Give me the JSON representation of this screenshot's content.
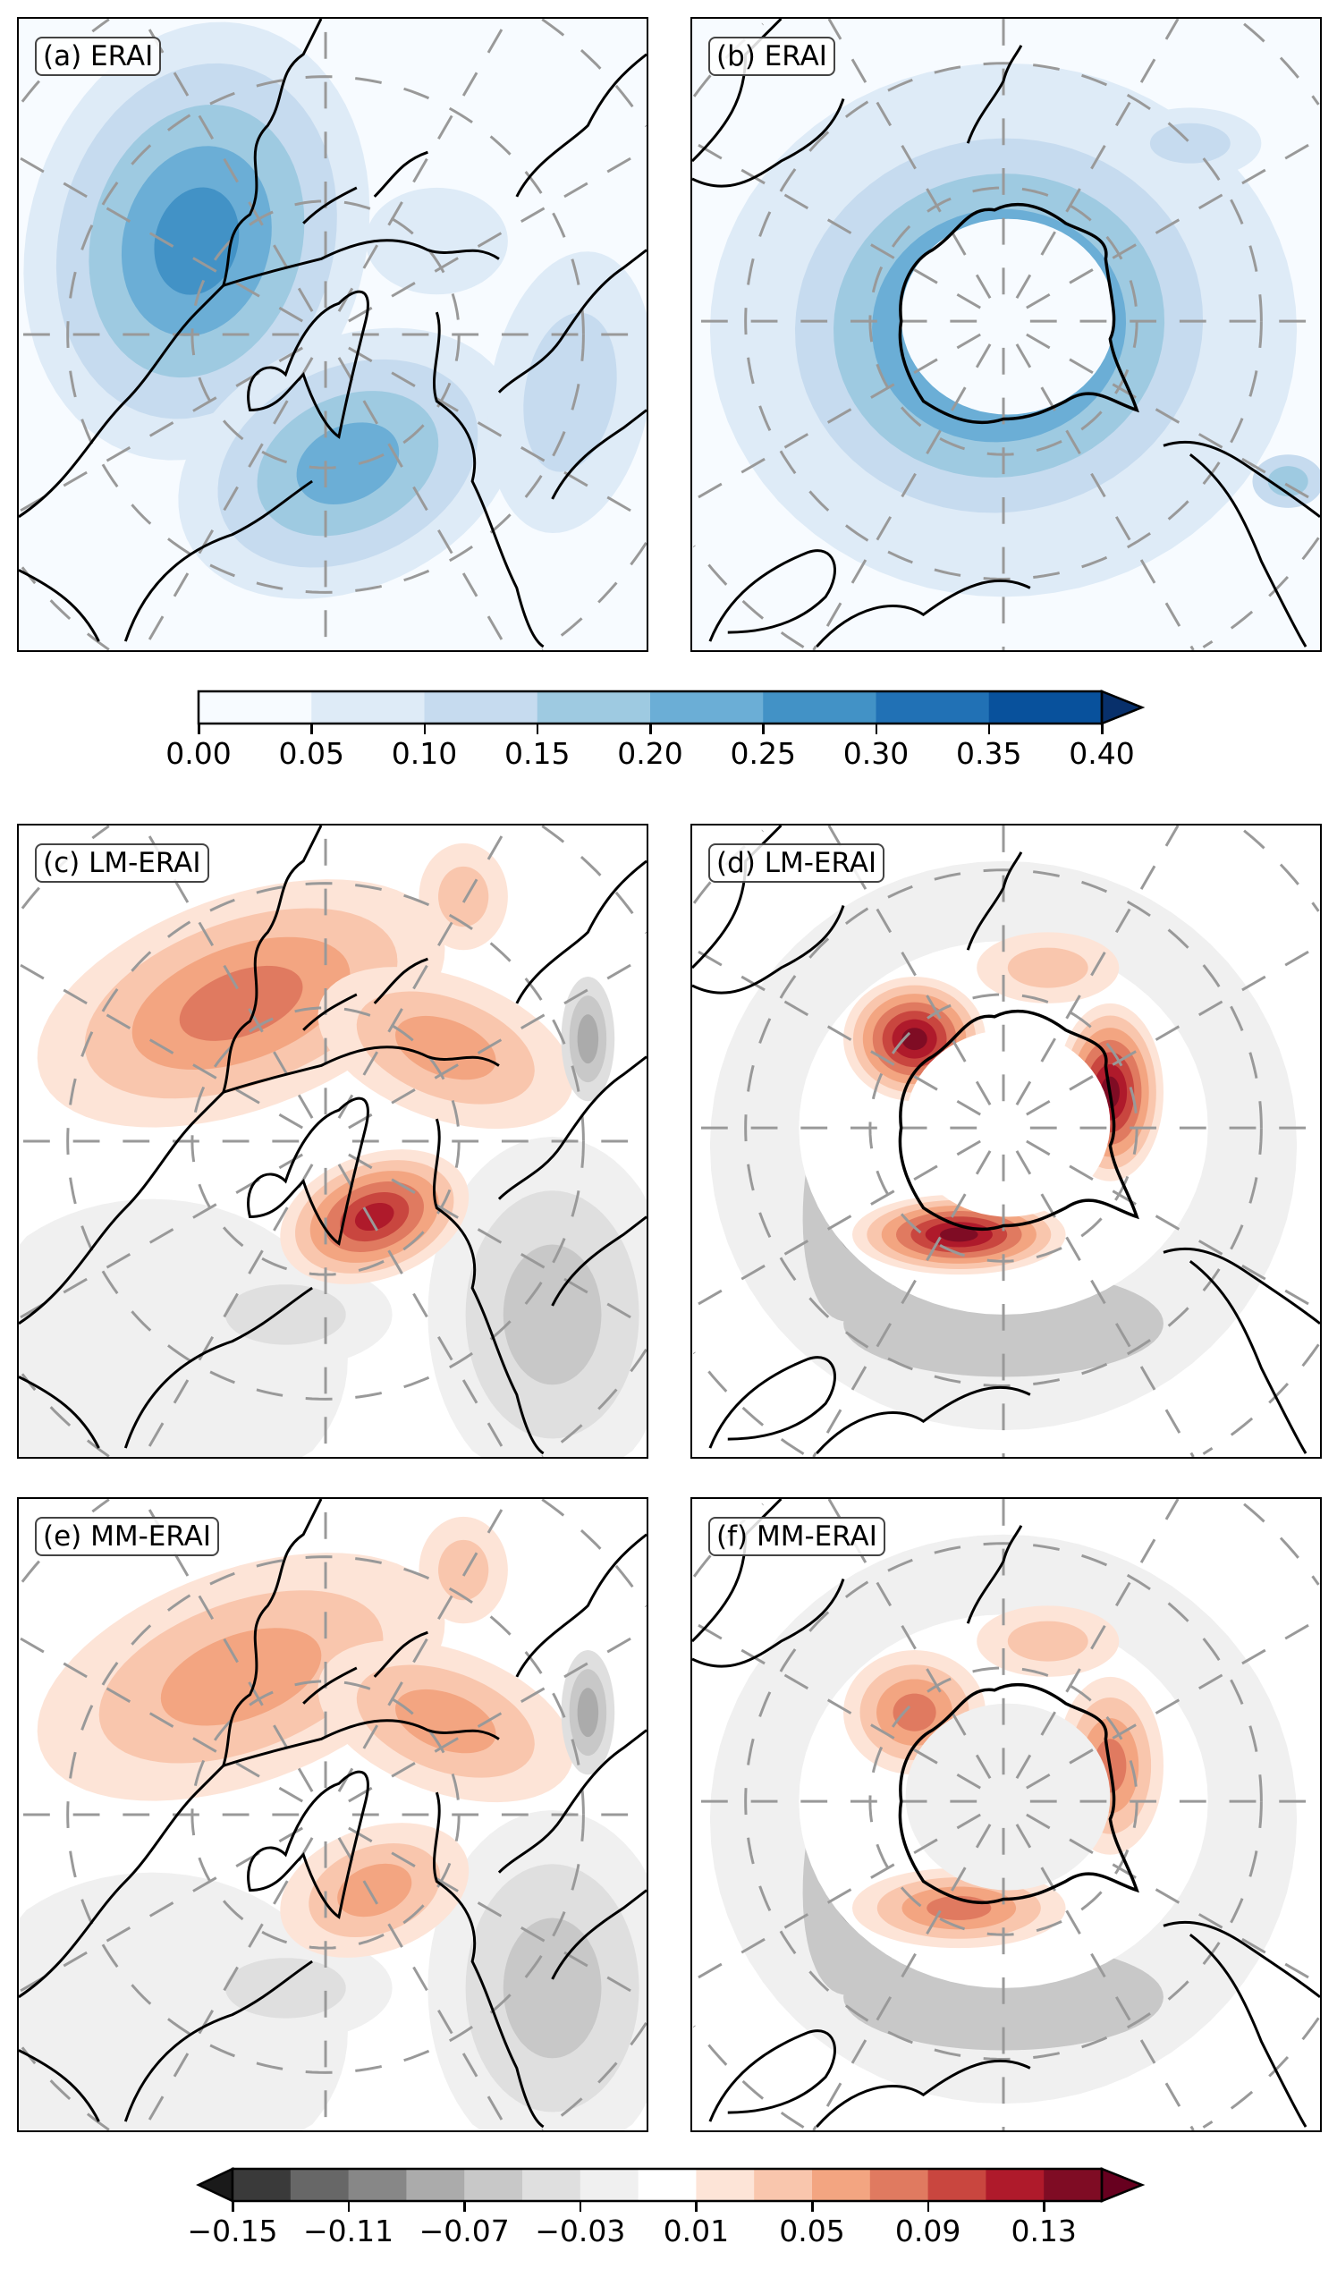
{
  "panels": [
    {
      "label": "(a) ERAI",
      "hemisphere": "north",
      "field": "ERAI"
    },
    {
      "label": "(b) ERAI",
      "hemisphere": "south",
      "field": "ERAI"
    },
    {
      "label": "(c) LM-ERAI",
      "hemisphere": "north",
      "field": "difference"
    },
    {
      "label": "(d) LM-ERAI",
      "hemisphere": "south",
      "field": "difference"
    },
    {
      "label": "(e) MM-ERAI",
      "hemisphere": "north",
      "field": "difference"
    },
    {
      "label": "(f) MM-ERAI",
      "hemisphere": "south",
      "field": "difference"
    }
  ],
  "colorbar_top": {
    "levels": [
      0.0,
      0.05,
      0.1,
      0.15,
      0.2,
      0.25,
      0.3,
      0.35,
      0.4
    ],
    "tick_labels": [
      "0.00",
      "0.05",
      "0.10",
      "0.15",
      "0.20",
      "0.25",
      "0.30",
      "0.35",
      "0.40"
    ],
    "colors": [
      "#f7fbff",
      "#deebf7",
      "#c6dbef",
      "#9ecae1",
      "#6baed6",
      "#4292c6",
      "#2171b5",
      "#08519c"
    ],
    "extend_max_color": "#08306b",
    "extend": "max"
  },
  "colorbar_bottom": {
    "levels": [
      -0.15,
      -0.13,
      -0.11,
      -0.09,
      -0.07,
      -0.05,
      -0.03,
      -0.01,
      0.01,
      0.03,
      0.05,
      0.07,
      0.09,
      0.11,
      0.13,
      0.15
    ],
    "tick_labels": [
      "−0.15",
      "−0.11",
      "−0.07",
      "−0.03",
      "0.01",
      "0.05",
      "0.09",
      "0.13"
    ],
    "colors": [
      "#3a3a3a",
      "#676767",
      "#878787",
      "#ababab",
      "#c8c8c8",
      "#dfdfdf",
      "#f0f0f0",
      "#ffffff",
      "#fde4d7",
      "#f9c6ad",
      "#f3a581",
      "#e07a60",
      "#c9463f",
      "#af1a2b",
      "#7f0c24"
    ],
    "extend_min_color": "#1a1a1a",
    "extend_max_color": "#67001f",
    "extend": "both"
  }
}
